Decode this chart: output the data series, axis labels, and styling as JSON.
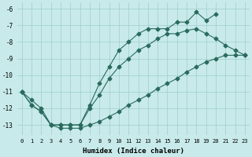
{
  "xlabel": "Humidex (Indice chaleur)",
  "background_color": "#c8eaea",
  "grid_color": "#a0cccc",
  "line_color": "#2a6b5e",
  "xlim": [
    -0.5,
    23.5
  ],
  "ylim": [
    -13.6,
    -5.6
  ],
  "yticks": [
    -13,
    -12,
    -11,
    -10,
    -9,
    -8,
    -7,
    -6
  ],
  "xticks": [
    0,
    1,
    2,
    3,
    4,
    5,
    6,
    7,
    8,
    9,
    10,
    11,
    12,
    13,
    14,
    15,
    16,
    17,
    18,
    19,
    20,
    21,
    22,
    23
  ],
  "line1_x": [
    0,
    1,
    2,
    3,
    4,
    5,
    6,
    7,
    8,
    9,
    10,
    11,
    12,
    13,
    14,
    15,
    16,
    17,
    18,
    19,
    20
  ],
  "line1_y": [
    -11.0,
    -11.8,
    -12.2,
    -13.0,
    -13.0,
    -13.0,
    -13.0,
    -11.8,
    -10.5,
    -9.5,
    -8.5,
    -8.0,
    -7.5,
    -7.2,
    -7.2,
    -7.2,
    -6.8,
    -6.8,
    -6.2,
    -6.7,
    -6.3
  ],
  "line2_x": [
    0,
    1,
    2,
    3,
    4,
    5,
    6,
    7,
    8,
    9,
    10,
    11,
    12,
    13,
    14,
    15,
    16,
    17,
    18,
    19,
    20,
    21,
    22,
    23
  ],
  "line2_y": [
    -11.0,
    -11.8,
    -12.2,
    -13.0,
    -13.0,
    -13.0,
    -13.0,
    -12.0,
    -11.2,
    -10.2,
    -9.5,
    -9.0,
    -8.5,
    -8.2,
    -7.8,
    -7.5,
    -7.5,
    -7.3,
    -7.2,
    -7.5,
    -7.8,
    -8.2,
    -8.5,
    -8.8
  ],
  "line3_x": [
    0,
    1,
    2,
    3,
    4,
    5,
    6,
    7,
    8,
    9,
    10,
    11,
    12,
    13,
    14,
    15,
    16,
    17,
    18,
    19,
    20,
    21,
    22,
    23
  ],
  "line3_y": [
    -11.0,
    -11.5,
    -12.0,
    -13.0,
    -13.2,
    -13.2,
    -13.2,
    -13.0,
    -12.8,
    -12.5,
    -12.2,
    -11.8,
    -11.5,
    -11.2,
    -10.8,
    -10.5,
    -10.2,
    -9.8,
    -9.5,
    -9.2,
    -9.0,
    -8.8,
    -8.8,
    -8.8
  ]
}
